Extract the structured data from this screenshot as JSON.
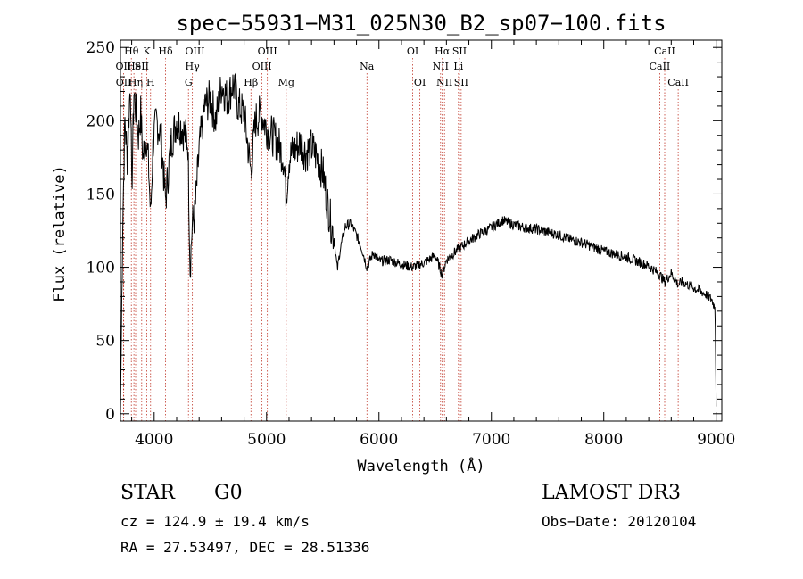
{
  "chart_data": {
    "type": "line",
    "title": "spec−55931−M31_025N30_B2_sp07−100.fits",
    "xlabel": "Wavelength (Å)",
    "ylabel": "Flux (relative)",
    "xlim": [
      3700,
      9050
    ],
    "ylim": [
      -5,
      255
    ],
    "xticks": [
      4000,
      5000,
      6000,
      7000,
      8000,
      9000
    ],
    "xtick_labels": [
      "4000",
      "5000",
      "6000",
      "7000",
      "8000",
      "9000"
    ],
    "yticks": [
      0,
      50,
      100,
      150,
      200,
      250
    ],
    "ytick_labels": [
      "0",
      "50",
      "100",
      "150",
      "200",
      "250"
    ],
    "spectrum_anchors": {
      "x": [
        3700,
        3720,
        3740,
        3760,
        3790,
        3800,
        3820,
        3860,
        3880,
        3900,
        3930,
        3950,
        3968,
        3990,
        4020,
        4060,
        4101,
        4150,
        4200,
        4250,
        4300,
        4320,
        4340,
        4361,
        4400,
        4450,
        4500,
        4550,
        4600,
        4650,
        4700,
        4750,
        4800,
        4861,
        4900,
        4950,
        5000,
        5050,
        5100,
        5150,
        5175,
        5200,
        5250,
        5300,
        5350,
        5400,
        5450,
        5500,
        5550,
        5600,
        5630,
        5650,
        5700,
        5750,
        5800,
        5850,
        5893,
        5950,
        6000,
        6100,
        6200,
        6300,
        6400,
        6500,
        6563,
        6600,
        6700,
        6800,
        6900,
        7000,
        7100,
        7200,
        7300,
        7400,
        7500,
        7600,
        7700,
        7800,
        7900,
        8000,
        8100,
        8200,
        8300,
        8400,
        8498,
        8542,
        8600,
        8662,
        8700,
        8800,
        8900,
        8960,
        8990,
        9000
      ],
      "y": [
        0,
        130,
        200,
        175,
        230,
        150,
        220,
        190,
        205,
        175,
        190,
        170,
        135,
        185,
        200,
        190,
        145,
        185,
        200,
        195,
        185,
        100,
        130,
        135,
        180,
        210,
        215,
        200,
        225,
        215,
        225,
        210,
        205,
        165,
        200,
        205,
        195,
        190,
        185,
        175,
        150,
        175,
        180,
        185,
        178,
        182,
        175,
        165,
        140,
        120,
        98,
        110,
        128,
        130,
        122,
        112,
        100,
        110,
        104,
        105,
        102,
        100,
        103,
        108,
        95,
        105,
        112,
        118,
        123,
        127,
        132,
        129,
        127,
        126,
        124,
        122,
        119,
        117,
        114,
        111,
        109,
        107,
        104,
        101,
        95,
        90,
        96,
        88,
        90,
        86,
        82,
        78,
        72,
        5
      ]
    },
    "lines": [
      {
        "name": "Hθ",
        "wave": 3797,
        "row": 1
      },
      {
        "name": "OII",
        "wave": 3727,
        "row": 2
      },
      {
        "name": "OII",
        "wave": 3729,
        "row": 3
      },
      {
        "name": "He",
        "wave": 3820,
        "row": 2
      },
      {
        "name": "Hη",
        "wave": 3835,
        "row": 3
      },
      {
        "name": "K",
        "wave": 3934,
        "row": 1
      },
      {
        "name": "SII",
        "wave": 3889,
        "row": 2
      },
      {
        "name": "H",
        "wave": 3968,
        "row": 3
      },
      {
        "name": "Hδ",
        "wave": 4101,
        "row": 1
      },
      {
        "name": "OIII",
        "wave": 4363,
        "row": 1
      },
      {
        "name": "Hγ",
        "wave": 4340,
        "row": 2
      },
      {
        "name": "G",
        "wave": 4305,
        "row": 3
      },
      {
        "name": "Hβ",
        "wave": 4861,
        "row": 3
      },
      {
        "name": "OIII",
        "wave": 5007,
        "row": 1
      },
      {
        "name": "OIII",
        "wave": 4959,
        "row": 2
      },
      {
        "name": "Mg",
        "wave": 5175,
        "row": 3
      },
      {
        "name": "Na",
        "wave": 5893,
        "row": 2
      },
      {
        "name": "OI",
        "wave": 6300,
        "row": 1
      },
      {
        "name": "OI",
        "wave": 6364,
        "row": 3
      },
      {
        "name": "Hα",
        "wave": 6563,
        "row": 1
      },
      {
        "name": "SII",
        "wave": 6716,
        "row": 1
      },
      {
        "name": "NII",
        "wave": 6548,
        "row": 2
      },
      {
        "name": "Li",
        "wave": 6707,
        "row": 2
      },
      {
        "name": "NII",
        "wave": 6583,
        "row": 3
      },
      {
        "name": "SII",
        "wave": 6731,
        "row": 3
      },
      {
        "name": "CaII",
        "wave": 8542,
        "row": 1
      },
      {
        "name": "CaII",
        "wave": 8498,
        "row": 2
      },
      {
        "name": "CaII",
        "wave": 8662,
        "row": 3
      }
    ]
  },
  "info": {
    "class": "STAR",
    "subclass": "G0",
    "survey": "LAMOST DR3",
    "cz": "cz = 124.9 ± 19.4 km/s",
    "obs_date": "Obs−Date: 20120104",
    "coords": "RA =  27.53497, DEC =  28.51336"
  }
}
